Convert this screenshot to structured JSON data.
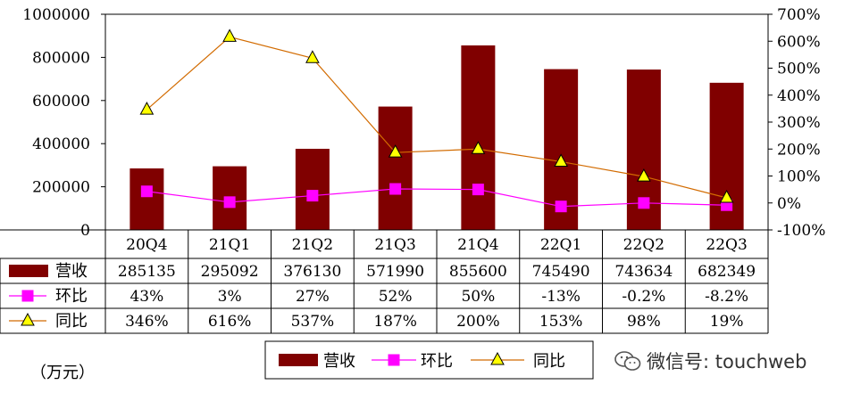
{
  "unit_label": "（万元）",
  "watermark": "微信号: touchweb",
  "chart_data": {
    "type": "bar",
    "categories": [
      "20Q4",
      "21Q1",
      "21Q2",
      "21Q3",
      "21Q4",
      "22Q1",
      "22Q2",
      "22Q3"
    ],
    "y_left": {
      "ticks": [
        "1000000",
        "800000",
        "600000",
        "400000",
        "200000",
        "0"
      ],
      "min": 0,
      "max": 1000000
    },
    "y_right": {
      "ticks": [
        "700%",
        "600%",
        "500%",
        "400%",
        "300%",
        "200%",
        "100%",
        "0%",
        "-100%"
      ],
      "min": -100,
      "max": 700
    },
    "series": [
      {
        "name": "营收",
        "kind": "bar",
        "color": "#800000",
        "values": [
          285135,
          295092,
          376130,
          571990,
          855600,
          745490,
          743634,
          682349
        ],
        "table": [
          "285135",
          "295092",
          "376130",
          "571990",
          "855600",
          "745490",
          "743634",
          "682349"
        ]
      },
      {
        "name": "环比",
        "kind": "line",
        "axis": "right",
        "color": "#ff00ff",
        "marker": "square",
        "values": [
          43,
          3,
          27,
          52,
          50,
          -13,
          -0.2,
          -8.2
        ],
        "table": [
          "43%",
          "3%",
          "27%",
          "52%",
          "50%",
          "-13%",
          "-0.2%",
          "-8.2%"
        ]
      },
      {
        "name": "同比",
        "kind": "line",
        "axis": "right",
        "color": "#d26b00",
        "marker": "triangle",
        "marker_fill": "#ffff00",
        "values": [
          346,
          616,
          537,
          187,
          200,
          153,
          98,
          19
        ],
        "table": [
          "346%",
          "616%",
          "537%",
          "187%",
          "200%",
          "153%",
          "98%",
          "19%"
        ]
      }
    ],
    "legend": "bottom",
    "grid": false
  }
}
